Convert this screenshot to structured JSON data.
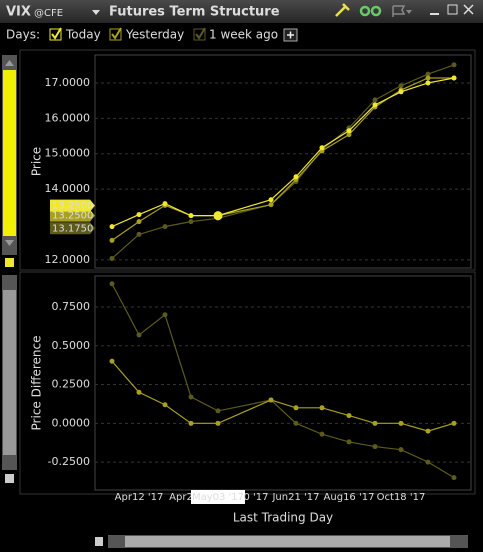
{
  "window": {
    "symbol": "VIX",
    "exchange": "@CFE",
    "title": "Futures Term Structure"
  },
  "days": {
    "label": "Days:",
    "options": [
      "Today",
      "Yesterday",
      "1 week ago"
    ]
  },
  "chart_data": [
    {
      "type": "line",
      "ylabel": "Price",
      "ylim": [
        11.77,
        17.79
      ],
      "yticks": [
        {
          "value": 12,
          "label": "12.0000"
        },
        {
          "value": 14,
          "label": "14.0000"
        },
        {
          "value": 15,
          "label": "15.0000"
        },
        {
          "value": 16,
          "label": "16.0000"
        },
        {
          "value": 17,
          "label": "17.0000"
        }
      ],
      "grid": true,
      "series": [
        {
          "name": "1 week ago",
          "color": "#5c5a1c",
          "axis_label": "13.1750",
          "values": [
            12.04,
            12.72,
            12.94,
            13.08,
            13.175,
            13.56,
            14.21,
            15.11,
            15.73,
            16.52,
            16.92,
            17.25,
            17.51
          ]
        },
        {
          "name": "Yesterday",
          "color": "#a8a020",
          "axis_label": "13.2500",
          "values": [
            12.55,
            13.08,
            13.54,
            13.25,
            13.25,
            13.56,
            14.27,
            15.08,
            15.54,
            16.32,
            16.8,
            17.14,
            17.14
          ]
        },
        {
          "name": "Today",
          "color": "#f0e830",
          "axis_label": "13.2500",
          "values": [
            12.94,
            13.28,
            13.59,
            13.25,
            13.25,
            13.7,
            14.35,
            15.17,
            15.65,
            16.38,
            16.75,
            17.0,
            17.14
          ]
        }
      ]
    },
    {
      "type": "line",
      "ylabel": "Price Difference",
      "xlabel": "Last Trading Day",
      "categories": [
        null,
        "Apr12 '17",
        null,
        "Apr2",
        "May03 '17",
        "0 '17",
        "Jun21 '17",
        null,
        "Aug16 '17",
        null,
        "Oct18 '17",
        null,
        null
      ],
      "ylim": [
        -0.43,
        0.95
      ],
      "yticks": [
        {
          "value": -0.25,
          "label": "-0.2500"
        },
        {
          "value": 0,
          "label": "0.0000"
        },
        {
          "value": 0.25,
          "label": "0.2500"
        },
        {
          "value": 0.5,
          "label": "0.5000"
        },
        {
          "value": 0.75,
          "label": "0.7500"
        }
      ],
      "grid": true,
      "series": [
        {
          "name": "1 week ago",
          "color": "#5c5a1c",
          "values": [
            0.9,
            0.57,
            0.7,
            0.17,
            0.08,
            0.15,
            0,
            -0.07,
            -0.12,
            -0.15,
            -0.17,
            -0.25,
            -0.35
          ]
        },
        {
          "name": "Yesterday",
          "color": "#a8a020",
          "values": [
            0.4,
            0.2,
            0.12,
            0,
            0,
            0.15,
            0.1,
            0.1,
            0.05,
            0,
            0,
            -0.05,
            0
          ]
        }
      ]
    }
  ]
}
